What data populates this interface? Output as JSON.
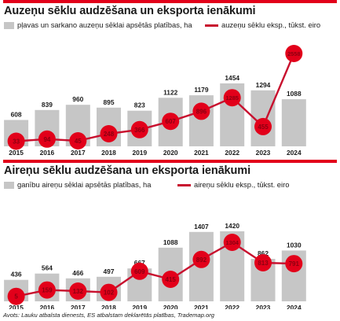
{
  "chart_data": [
    {
      "type": "bar",
      "title": "Auzeņu sēklu audzēšana un eksporta ienākumi",
      "categories": [
        "2015",
        "2016",
        "2017",
        "2018",
        "2019",
        "2020",
        "2021",
        "2022",
        "2023",
        "2024"
      ],
      "series": [
        {
          "name": "pļavas un sarkano auzeņu sēklai apsētās platības, ha",
          "type": "bar",
          "values": [
            608,
            839,
            960,
            895,
            823,
            1122,
            1179,
            1454,
            1294,
            1088
          ]
        },
        {
          "name": "auzeņu sēklu eksp., tūkst. eiro",
          "type": "line",
          "values": [
            33,
            94,
            45,
            248,
            366,
            607,
            896,
            1285,
            455,
            2558
          ]
        }
      ],
      "grid": false,
      "legend": "top-left",
      "colors": {
        "bar": "#c6c6c6",
        "line": "#c8102e",
        "marker": "#e2001a"
      }
    },
    {
      "type": "bar",
      "title": "Aireņu sēklu audzēšana un eksporta ienākumi",
      "categories": [
        "2015",
        "2016",
        "2017",
        "2018",
        "2019",
        "2020",
        "2021",
        "2022",
        "2023",
        "2024"
      ],
      "series": [
        {
          "name": "ganību aireņu sēklai apsētās platības, ha",
          "type": "bar",
          "values": [
            436,
            564,
            466,
            497,
            667,
            1088,
            1407,
            1420,
            862,
            1030
          ]
        },
        {
          "name": "aireņu sēklu eksp., tūkst. eiro",
          "type": "line",
          "values": [
            5,
            159,
            132,
            102,
            609,
            415,
            892,
            1304,
            813,
            791
          ]
        }
      ],
      "grid": false,
      "legend": "top-left",
      "colors": {
        "bar": "#c6c6c6",
        "line": "#c8102e",
        "marker": "#e2001a"
      }
    }
  ],
  "source": "Avots: Lauku atbalsta dienests, ES atbalstam deklarētās platības, Trademap.org"
}
